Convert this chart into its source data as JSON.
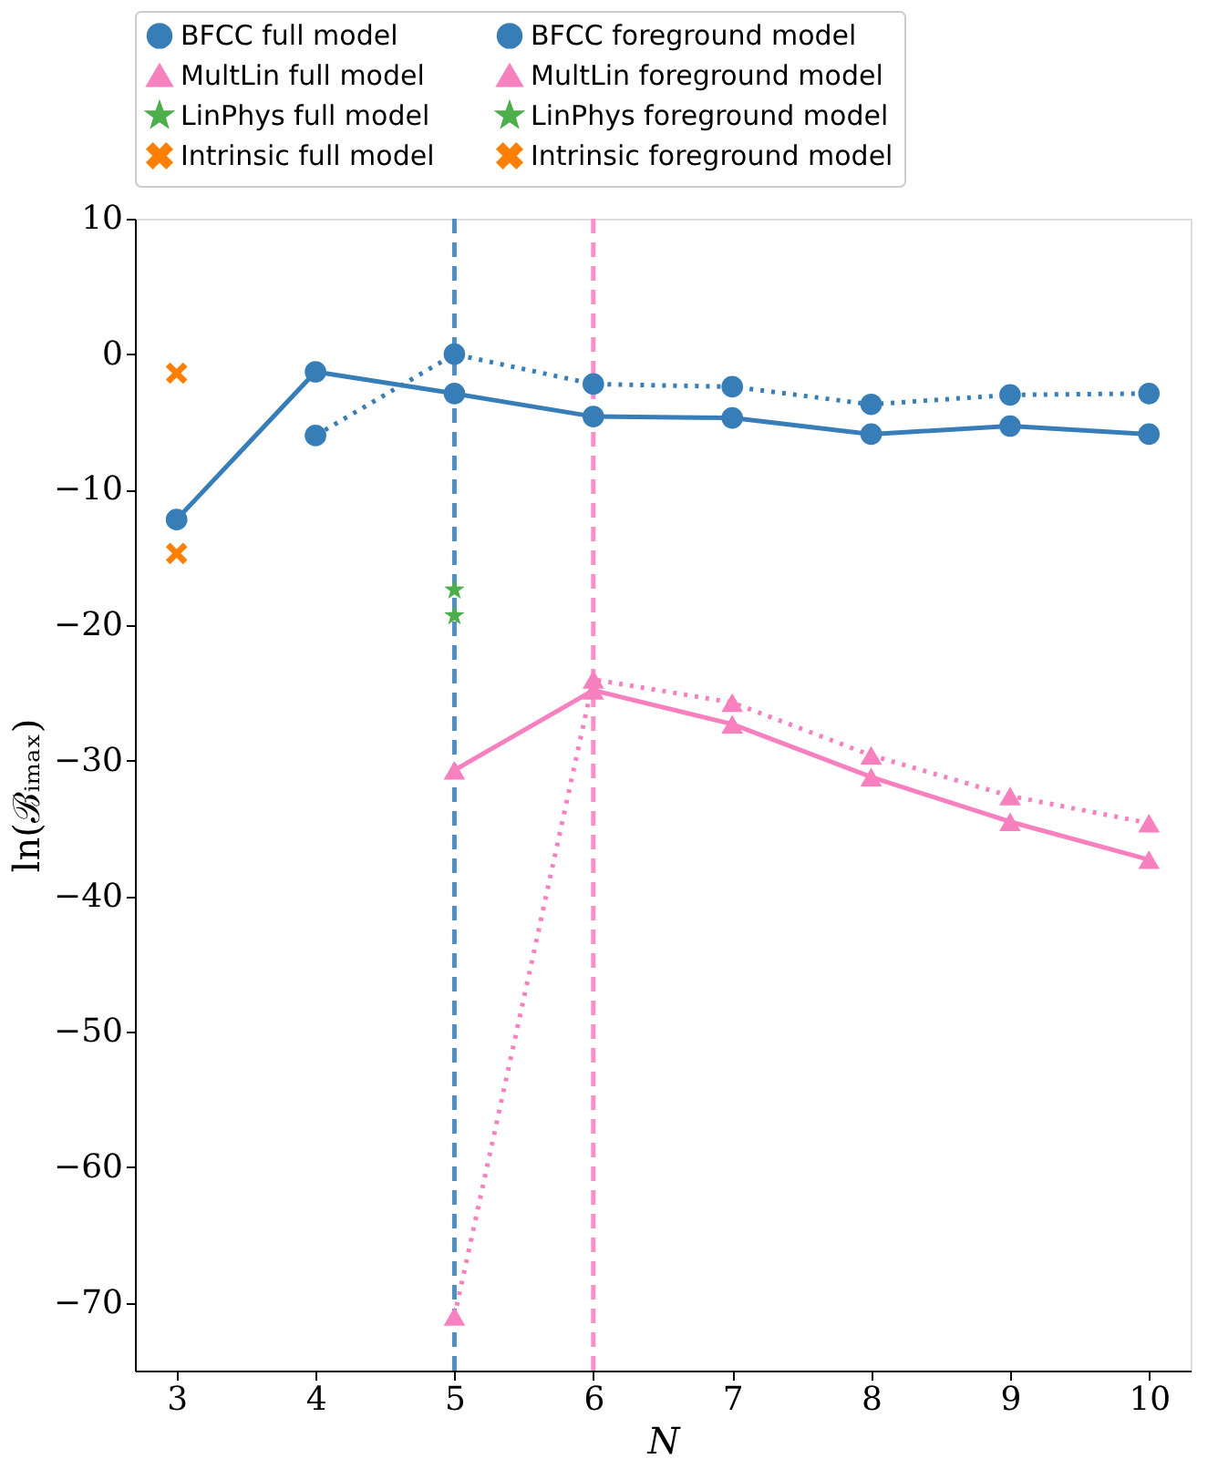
{
  "chart_data": {
    "type": "line",
    "xlabel": "N",
    "ylabel": "ln(ℬᵢₘₐₓ)",
    "x": [
      3,
      4,
      5,
      6,
      7,
      8,
      9,
      10
    ],
    "xlim": [
      2.7,
      10.3
    ],
    "xticks": [
      3,
      4,
      5,
      6,
      7,
      8,
      9,
      10
    ],
    "ylim": [
      -75,
      10
    ],
    "yticks": [
      10,
      0,
      -10,
      -20,
      -30,
      -40,
      -50,
      -60,
      -70
    ],
    "grid": false,
    "legend": "top",
    "series": [
      {
        "name": "BFCC full model",
        "type": "line",
        "color": "#377eb8",
        "marker": "circle",
        "line_style": "solid",
        "values": [
          -12.2,
          -1.3,
          -2.9,
          -4.6,
          -4.7,
          -5.9,
          -5.3,
          -5.9
        ]
      },
      {
        "name": "MultLin full model",
        "type": "line",
        "color": "#f781bf",
        "marker": "triangle",
        "line_style": "solid",
        "values": [
          null,
          null,
          -30.7,
          -24.8,
          -27.3,
          -31.2,
          -34.5,
          -37.3
        ]
      },
      {
        "name": "LinPhys full model",
        "type": "scatter",
        "color": "#4daf4a",
        "marker": "star",
        "values": [
          null,
          null,
          -17.4,
          null,
          null,
          null,
          null,
          null
        ]
      },
      {
        "name": "Intrinsic full model",
        "type": "scatter",
        "color": "#ff7f00",
        "marker": "cross",
        "values": [
          -1.4,
          null,
          null,
          null,
          null,
          null,
          null,
          null
        ]
      },
      {
        "name": "BFCC foreground model",
        "type": "line",
        "color": "#377eb8",
        "marker": "circle",
        "line_style": "dotted",
        "values": [
          null,
          -6.0,
          0.0,
          -2.2,
          -2.4,
          -3.7,
          -3.0,
          -2.9
        ]
      },
      {
        "name": "MultLin foreground model",
        "type": "line",
        "color": "#f781bf",
        "marker": "triangle",
        "line_style": "dotted",
        "values": [
          null,
          null,
          -71.0,
          -24.0,
          -25.7,
          -29.6,
          -32.6,
          -34.6
        ]
      },
      {
        "name": "LinPhys foreground model",
        "type": "scatter",
        "color": "#4daf4a",
        "marker": "star",
        "values": [
          null,
          null,
          -19.3,
          null,
          null,
          null,
          null,
          null
        ]
      },
      {
        "name": "Intrinsic foreground model",
        "type": "scatter",
        "color": "#ff7f00",
        "marker": "cross",
        "values": [
          -14.7,
          null,
          null,
          null,
          null,
          null,
          null,
          null
        ]
      }
    ],
    "ref_lines": [
      {
        "axis": "x",
        "value": 5,
        "color": "#4f8fc6",
        "line_style": "dashed"
      },
      {
        "axis": "x",
        "value": 6,
        "color": "#f98fc8",
        "line_style": "dashed"
      }
    ]
  }
}
